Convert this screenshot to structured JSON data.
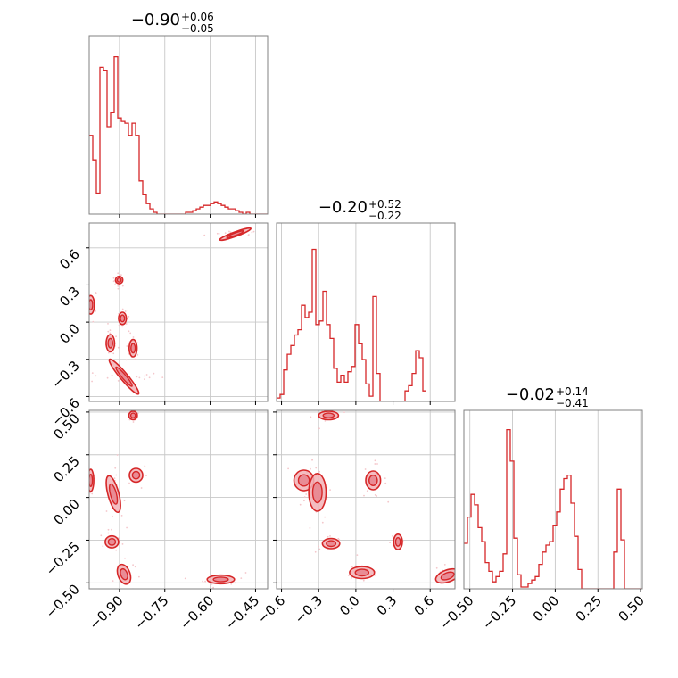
{
  "colors": {
    "line": "#d62728",
    "fill": "#f2b1b6",
    "fill_dark": "#e88690",
    "scatter": "#f4c7cb",
    "grid": "#c8c8c8",
    "frame": "#808080"
  },
  "chart_data": {
    "type": "corner",
    "parameters": [
      {
        "range": [
          -1.0,
          -0.41
        ],
        "ticks": [
          -0.9,
          -0.75,
          -0.6,
          -0.45
        ],
        "tick_labels": [
          "−0.90",
          "−0.75",
          "−0.60",
          "−0.45"
        ],
        "title": {
          "main": "−0.90",
          "sup": "+0.06",
          "sub": "−0.05"
        },
        "histogram": {
          "edges_start": -1.0,
          "bin_width": 0.0118,
          "counts": [
            0.45,
            0.31,
            0.12,
            0.84,
            0.82,
            0.5,
            0.58,
            0.9,
            0.55,
            0.53,
            0.52,
            0.45,
            0.52,
            0.45,
            0.19,
            0.11,
            0.06,
            0.03,
            0.01,
            0.0,
            0.0,
            0.0,
            0.0,
            0.0,
            0.0,
            0.0,
            0.0,
            0.01,
            0.01,
            0.02,
            0.03,
            0.04,
            0.05,
            0.05,
            0.06,
            0.07,
            0.06,
            0.05,
            0.04,
            0.03,
            0.03,
            0.02,
            0.01,
            0.0,
            0.01,
            0.0,
            0.0,
            0.0,
            0.0,
            0.0
          ]
        }
      },
      {
        "range": [
          -0.64,
          0.8
        ],
        "ticks": [
          -0.6,
          -0.3,
          0.0,
          0.3,
          0.6
        ],
        "tick_labels": [
          "−0.6",
          "−0.3",
          "0.0",
          "0.3",
          "0.6"
        ],
        "title": {
          "main": "−0.20",
          "sup": "+0.52",
          "sub": "−0.22"
        },
        "histogram": {
          "edges_start": -0.64,
          "bin_width": 0.0288,
          "counts": [
            0.02,
            0.04,
            0.18,
            0.27,
            0.32,
            0.38,
            0.41,
            0.55,
            0.48,
            0.51,
            0.87,
            0.44,
            0.46,
            0.63,
            0.44,
            0.36,
            0.19,
            0.11,
            0.15,
            0.11,
            0.17,
            0.2,
            0.44,
            0.33,
            0.24,
            0.1,
            0.03,
            0.6,
            0.16,
            0.0,
            0.0,
            0.0,
            0.0,
            0.0,
            0.0,
            0.0,
            0.06,
            0.09,
            0.16,
            0.29,
            0.25,
            0.06
          ]
        }
      },
      {
        "range": [
          -0.535,
          0.51
        ],
        "ticks": [
          -0.5,
          -0.25,
          0.0,
          0.25,
          0.5
        ],
        "tick_labels": [
          "−0.50",
          "−0.25",
          "0.00",
          "0.25",
          "0.50"
        ],
        "title": {
          "main": "−0.02",
          "sup": "+0.14",
          "sub": "−0.41"
        },
        "histogram": {
          "edges_start": -0.535,
          "bin_width": 0.0209,
          "counts": [
            0.26,
            0.41,
            0.54,
            0.48,
            0.35,
            0.27,
            0.15,
            0.1,
            0.04,
            0.07,
            0.1,
            0.2,
            0.91,
            0.73,
            0.29,
            0.08,
            0.01,
            0.01,
            0.03,
            0.05,
            0.07,
            0.14,
            0.21,
            0.25,
            0.27,
            0.36,
            0.44,
            0.57,
            0.63,
            0.65,
            0.49,
            0.3,
            0.11,
            0.0,
            0.0,
            0.0,
            0.0,
            0.0,
            0.0,
            0.0,
            0.0,
            0.0,
            0.21,
            0.57,
            0.28,
            0.0,
            0.0,
            0.0,
            0.0,
            0.0
          ]
        }
      }
    ],
    "pairs": [
      {
        "x_param": 0,
        "y_param": 1,
        "blobs": [
          {
            "cx": -0.517,
            "cy": 0.71,
            "rx": 0.055,
            "ry": 0.018,
            "angle": -20
          },
          {
            "cx": -0.901,
            "cy": 0.34,
            "rx": 0.012,
            "ry": 0.03,
            "angle": 0
          },
          {
            "cx": -0.995,
            "cy": 0.14,
            "rx": 0.012,
            "ry": 0.075,
            "angle": 0
          },
          {
            "cx": -0.89,
            "cy": 0.03,
            "rx": 0.013,
            "ry": 0.05,
            "angle": 0
          },
          {
            "cx": -0.93,
            "cy": -0.17,
            "rx": 0.014,
            "ry": 0.07,
            "angle": 0
          },
          {
            "cx": -0.855,
            "cy": -0.21,
            "rx": 0.013,
            "ry": 0.07,
            "angle": 0
          },
          {
            "cx": -0.885,
            "cy": -0.44,
            "rx": 0.075,
            "ry": 0.03,
            "angle": 50
          }
        ],
        "scatter_centers": [
          [
            -0.52,
            0.71
          ],
          [
            -0.88,
            0.05
          ],
          [
            -0.9,
            -0.15
          ],
          [
            -0.88,
            -0.44
          ]
        ]
      },
      {
        "x_param": 0,
        "y_param": 2,
        "blobs": [
          {
            "cx": -0.855,
            "cy": 0.48,
            "rx": 0.014,
            "ry": 0.025,
            "angle": 0
          },
          {
            "cx": -0.995,
            "cy": 0.1,
            "rx": 0.01,
            "ry": 0.065,
            "angle": 0
          },
          {
            "cx": -0.845,
            "cy": 0.13,
            "rx": 0.022,
            "ry": 0.04,
            "angle": 0
          },
          {
            "cx": -0.92,
            "cy": 0.02,
            "rx": 0.018,
            "ry": 0.11,
            "angle": -15
          },
          {
            "cx": -0.925,
            "cy": -0.26,
            "rx": 0.022,
            "ry": 0.035,
            "angle": 0
          },
          {
            "cx": -0.885,
            "cy": -0.45,
            "rx": 0.02,
            "ry": 0.06,
            "angle": -20
          },
          {
            "cx": -0.565,
            "cy": -0.48,
            "rx": 0.045,
            "ry": 0.025,
            "angle": 0
          }
        ],
        "scatter_centers": [
          [
            -0.88,
            0.05
          ],
          [
            -0.56,
            -0.48
          ],
          [
            -0.9,
            -0.3
          ]
        ]
      },
      {
        "x_param": 1,
        "y_param": 2,
        "blobs": [
          {
            "cx": -0.22,
            "cy": 0.48,
            "rx": 0.08,
            "ry": 0.025,
            "angle": 0
          },
          {
            "cx": -0.42,
            "cy": 0.1,
            "rx": 0.08,
            "ry": 0.06,
            "angle": 0
          },
          {
            "cx": -0.31,
            "cy": 0.03,
            "rx": 0.07,
            "ry": 0.11,
            "angle": 0
          },
          {
            "cx": 0.14,
            "cy": 0.1,
            "rx": 0.06,
            "ry": 0.055,
            "angle": 0
          },
          {
            "cx": -0.2,
            "cy": -0.27,
            "rx": 0.07,
            "ry": 0.03,
            "angle": 0
          },
          {
            "cx": 0.34,
            "cy": -0.26,
            "rx": 0.035,
            "ry": 0.045,
            "angle": 0
          },
          {
            "cx": 0.05,
            "cy": -0.44,
            "rx": 0.1,
            "ry": 0.035,
            "angle": 0
          },
          {
            "cx": 0.74,
            "cy": -0.46,
            "rx": 0.1,
            "ry": 0.035,
            "angle": -20
          }
        ],
        "scatter_centers": [
          [
            -0.35,
            0.05
          ],
          [
            0.05,
            -0.45
          ],
          [
            0.7,
            -0.47
          ],
          [
            -0.2,
            -0.27
          ]
        ]
      }
    ]
  }
}
